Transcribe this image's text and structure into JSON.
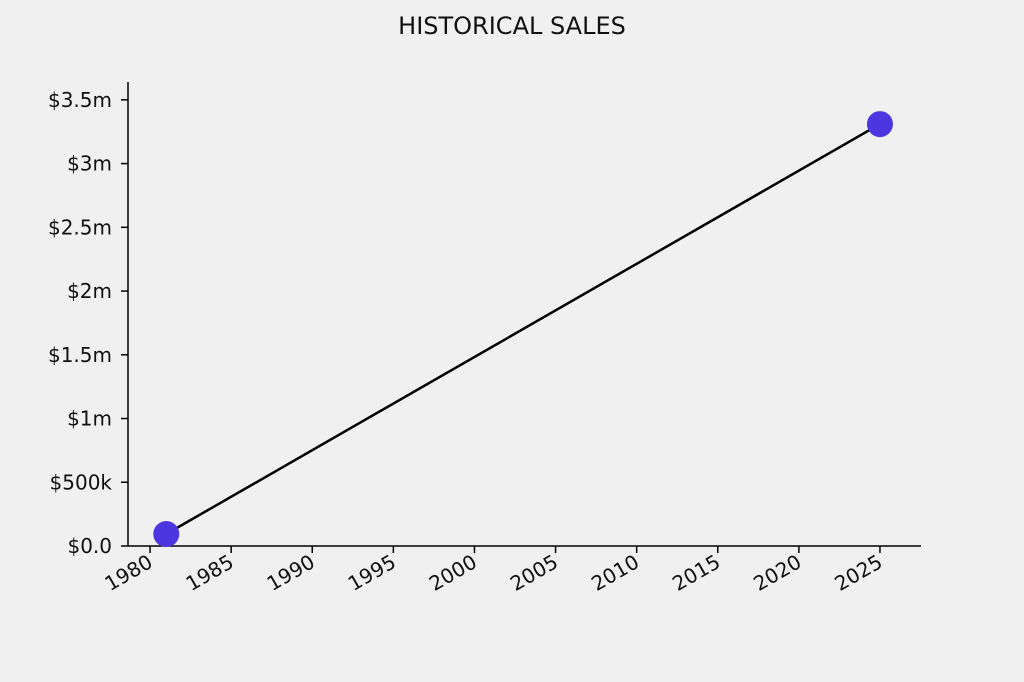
{
  "chart_data": {
    "type": "line",
    "title": "HISTORICAL SALES",
    "x": [
      1981,
      2025
    ],
    "values": [
      94000,
      3310000
    ],
    "line_color": "#000000",
    "marker_color": "#4b36e0",
    "xlim": [
      1978.64,
      2027.53
    ],
    "xticks": [
      1980,
      1985,
      1990,
      1995,
      2000,
      2005,
      2010,
      2015,
      2020,
      2025
    ],
    "ylim": [
      0,
      3640000
    ],
    "yticks": [
      {
        "value": 0,
        "label": "$0.0"
      },
      {
        "value": 500000,
        "label": "$500k"
      },
      {
        "value": 1000000,
        "label": "$1m"
      },
      {
        "value": 1500000,
        "label": "$1.5m"
      },
      {
        "value": 2000000,
        "label": "$2m"
      },
      {
        "value": 2500000,
        "label": "$2.5m"
      },
      {
        "value": 3000000,
        "label": "$3m"
      },
      {
        "value": 3500000,
        "label": "$3.5m"
      }
    ],
    "grid": false
  }
}
